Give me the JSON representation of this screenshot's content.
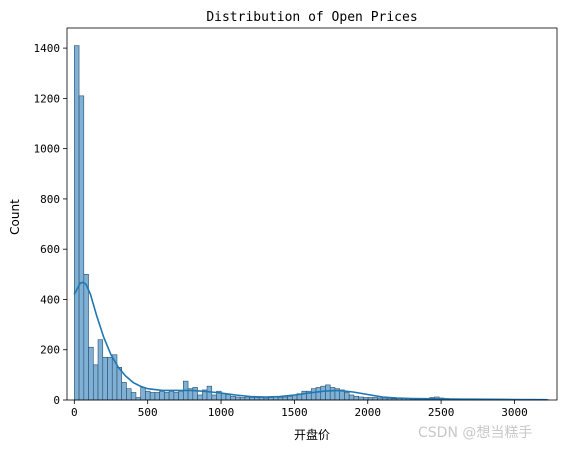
{
  "chart_data": {
    "type": "bar",
    "title": "Distribution of Open Prices",
    "xlabel": "开盘价",
    "ylabel": "Count",
    "xlim": [
      -50,
      3290
    ],
    "ylim": [
      0,
      1480
    ],
    "xticks": [
      0,
      500,
      1000,
      1500,
      2000,
      2500,
      3000
    ],
    "yticks": [
      0,
      200,
      400,
      600,
      800,
      1000,
      1200,
      1400
    ],
    "grid": false,
    "legend": "none",
    "bin_width": 32.3,
    "bin_start": 0,
    "counts": [
      1410,
      1210,
      500,
      210,
      140,
      240,
      170,
      170,
      180,
      130,
      70,
      45,
      30,
      10,
      50,
      35,
      30,
      30,
      35,
      30,
      35,
      30,
      35,
      75,
      45,
      50,
      20,
      40,
      55,
      20,
      35,
      25,
      22,
      15,
      12,
      10,
      12,
      10,
      10,
      10,
      8,
      10,
      12,
      10,
      12,
      15,
      20,
      25,
      35,
      35,
      45,
      50,
      55,
      60,
      50,
      45,
      40,
      30,
      20,
      15,
      12,
      10,
      10,
      10,
      8,
      8,
      6,
      5,
      6,
      5,
      5,
      4,
      4,
      5,
      6,
      10,
      12,
      8,
      6,
      5,
      5,
      4,
      4,
      4,
      3,
      3,
      3,
      3,
      2,
      2,
      2,
      2,
      2,
      2,
      2,
      2,
      2,
      2,
      2,
      2
    ],
    "kde_x": [
      0,
      40,
      60,
      80,
      110,
      150,
      200,
      250,
      300,
      350,
      400,
      450,
      500,
      600,
      700,
      800,
      900,
      1000,
      1100,
      1200,
      1300,
      1400,
      1500,
      1600,
      1700,
      1800,
      1900,
      2000,
      2100,
      2200,
      2300,
      2400,
      2500,
      2700,
      3000,
      3220
    ],
    "kde_y": [
      420,
      465,
      468,
      460,
      420,
      340,
      250,
      180,
      130,
      95,
      70,
      55,
      45,
      38,
      38,
      38,
      34,
      28,
      20,
      14,
      12,
      14,
      20,
      28,
      35,
      38,
      32,
      22,
      12,
      8,
      6,
      5,
      4,
      3,
      2,
      1
    ],
    "bar_color": "#7fb0d5",
    "bar_edge": "#2c4f6a",
    "kde_color": "#1f77b4"
  },
  "watermark": "CSDN @想当糕手"
}
